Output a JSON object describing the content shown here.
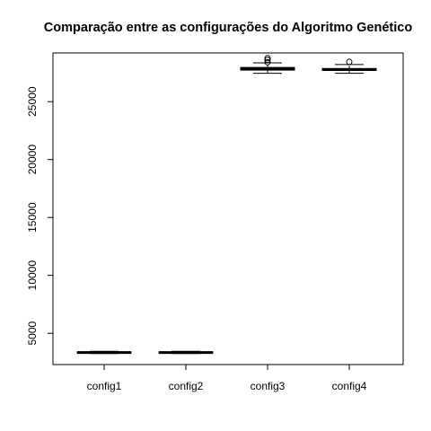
{
  "chart_data": {
    "type": "boxplot",
    "title": "Comparação entre as configurações do Algoritmo Genético",
    "xlabel": "",
    "ylabel": "",
    "categories": [
      "config1",
      "config2",
      "config3",
      "config4"
    ],
    "ylim": [
      2300,
      29200
    ],
    "yticks": [
      5000,
      10000,
      15000,
      20000,
      25000
    ],
    "ytick_labels": [
      "5000",
      "10000",
      "15000",
      "20000",
      "25000"
    ],
    "boxes": [
      {
        "name": "config1",
        "min": 3250,
        "q1": 3300,
        "median": 3340,
        "q3": 3390,
        "max": 3440,
        "outliers": []
      },
      {
        "name": "config2",
        "min": 3250,
        "q1": 3300,
        "median": 3340,
        "q3": 3390,
        "max": 3440,
        "outliers": []
      },
      {
        "name": "config3",
        "min": 27450,
        "q1": 27720,
        "median": 27810,
        "q3": 27950,
        "max": 28350,
        "outliers": [
          28400,
          28600,
          28750
        ]
      },
      {
        "name": "config4",
        "min": 27450,
        "q1": 27700,
        "median": 27770,
        "q3": 27860,
        "max": 28200,
        "outliers": [
          28430
        ]
      }
    ],
    "grid": false,
    "legend": "none"
  }
}
